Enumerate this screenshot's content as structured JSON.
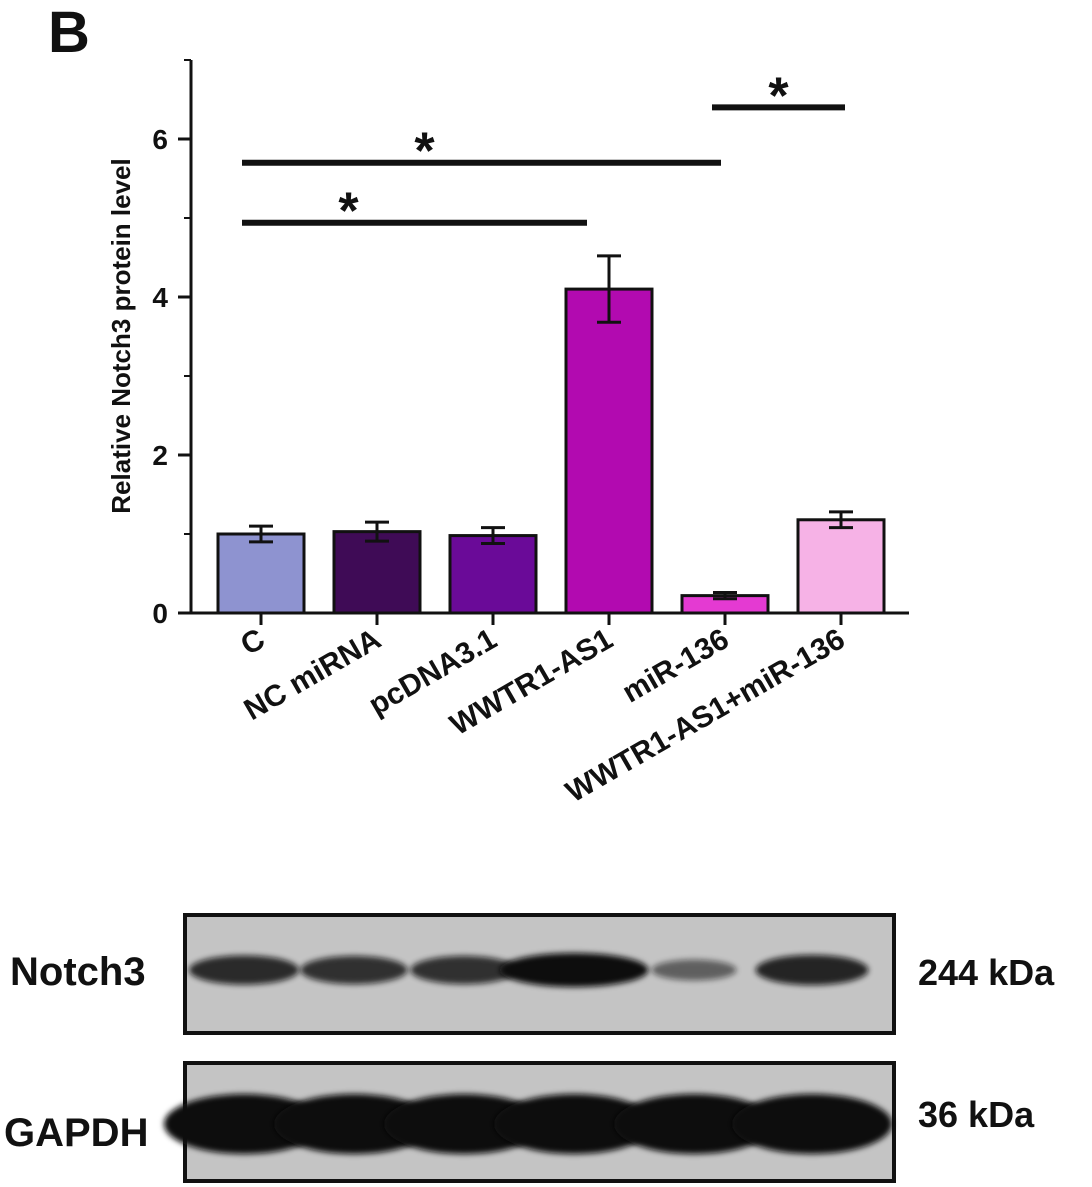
{
  "panel_label": "B",
  "chart_data": {
    "type": "bar",
    "title": "",
    "xlabel": "",
    "ylabel": "Relative Notch3 protein level",
    "ylim": [
      0,
      7
    ],
    "yticks": [
      0,
      2,
      4,
      6
    ],
    "grid": false,
    "categories": [
      "C",
      "NC miRNA",
      "pcDNA3.1",
      "WWTR1-AS1",
      "miR-136",
      "WWTR1-AS1+miR-136"
    ],
    "values": [
      1.0,
      1.03,
      0.98,
      4.1,
      0.22,
      1.18
    ],
    "errors": [
      0.1,
      0.12,
      0.1,
      0.42,
      0.04,
      0.1
    ],
    "colors": [
      "#8e93d0",
      "#3f0b56",
      "#6a0a98",
      "#b20ab0",
      "#e43ad2",
      "#f6b2e6"
    ],
    "significance": [
      {
        "from": "C",
        "to": "WWTR1-AS1",
        "label": "*",
        "y": 4.94
      },
      {
        "from": "C",
        "to": "miR-136",
        "label": "*",
        "y": 5.7
      },
      {
        "from": "miR-136",
        "to": "WWTR1-AS1+miR-136",
        "label": "*",
        "y": 6.4
      }
    ]
  },
  "western_blot": {
    "rows": [
      {
        "protein": "Notch3",
        "size": "244 kDa",
        "band_intensity": [
          0.75,
          0.7,
          0.7,
          1.0,
          0.3,
          0.8
        ]
      },
      {
        "protein": "GAPDH",
        "size": "36 kDa",
        "band_intensity": [
          1.0,
          1.0,
          1.0,
          1.0,
          1.0,
          1.0
        ]
      }
    ]
  }
}
